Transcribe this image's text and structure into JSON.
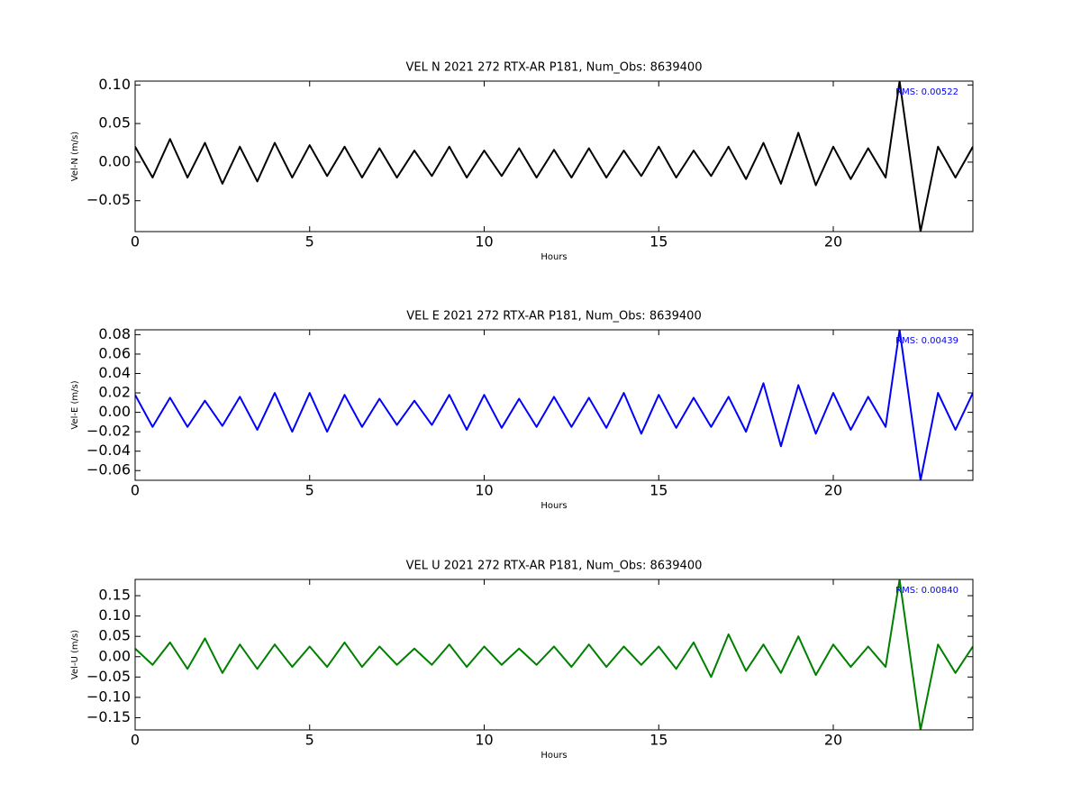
{
  "chart_data": [
    {
      "type": "line",
      "title": "VEL N 2021 272 RTX-AR  P181, Num_Obs: 8639400",
      "xlabel": "Hours",
      "ylabel": "Vel-N (m/s)",
      "annotation": "RMS:  0.00522",
      "annotation_color": "#0000ff",
      "color": "#000000",
      "x": [
        0,
        0.5,
        1,
        1.5,
        2,
        2.5,
        3,
        3.5,
        4,
        4.5,
        5,
        5.5,
        6,
        6.5,
        7,
        7.5,
        8,
        8.5,
        9,
        9.5,
        10,
        10.5,
        11,
        11.5,
        12,
        12.5,
        13,
        13.5,
        14,
        14.5,
        15,
        15.5,
        16,
        16.5,
        17,
        17.5,
        18,
        18.5,
        19,
        19.5,
        20,
        20.5,
        21,
        21.5,
        21.9,
        22.5,
        23,
        23.5,
        24
      ],
      "values": [
        0.02,
        -0.02,
        0.03,
        -0.02,
        0.025,
        -0.028,
        0.02,
        -0.025,
        0.025,
        -0.02,
        0.022,
        -0.018,
        0.02,
        -0.02,
        0.018,
        -0.02,
        0.015,
        -0.018,
        0.02,
        -0.02,
        0.015,
        -0.018,
        0.018,
        -0.02,
        0.016,
        -0.02,
        0.018,
        -0.02,
        0.015,
        -0.018,
        0.02,
        -0.02,
        0.015,
        -0.018,
        0.02,
        -0.022,
        0.025,
        -0.028,
        0.038,
        -0.03,
        0.02,
        -0.022,
        0.018,
        -0.02,
        0.105,
        -0.09,
        0.02,
        -0.02,
        0.02
      ],
      "xlim": [
        0,
        24
      ],
      "xticks": [
        0,
        5,
        10,
        15,
        20
      ],
      "ylim": [
        -0.09,
        0.105
      ],
      "yticks": [
        {
          "value": -0.05,
          "label": "−0.05"
        },
        {
          "value": 0,
          "label": "0.00"
        },
        {
          "value": 0.05,
          "label": "0.05"
        },
        {
          "value": 0.1,
          "label": "0.10"
        }
      ]
    },
    {
      "type": "line",
      "title": "VEL E 2021 272 RTX-AR  P181, Num_Obs: 8639400",
      "xlabel": "Hours",
      "ylabel": "Vel-E (m/s)",
      "annotation": "RMS:  0.00439",
      "annotation_color": "#0000ff",
      "color": "#0000ff",
      "x": [
        0,
        0.5,
        1,
        1.5,
        2,
        2.5,
        3,
        3.5,
        4,
        4.5,
        5,
        5.5,
        6,
        6.5,
        7,
        7.5,
        8,
        8.5,
        9,
        9.5,
        10,
        10.5,
        11,
        11.5,
        12,
        12.5,
        13,
        13.5,
        14,
        14.5,
        15,
        15.5,
        16,
        16.5,
        17,
        17.5,
        18,
        18.5,
        19,
        19.5,
        20,
        20.5,
        21,
        21.5,
        21.9,
        22.5,
        23,
        23.5,
        24
      ],
      "values": [
        0.018,
        -0.015,
        0.015,
        -0.015,
        0.012,
        -0.014,
        0.016,
        -0.018,
        0.02,
        -0.02,
        0.02,
        -0.02,
        0.018,
        -0.015,
        0.014,
        -0.013,
        0.012,
        -0.013,
        0.018,
        -0.018,
        0.018,
        -0.016,
        0.014,
        -0.015,
        0.016,
        -0.015,
        0.015,
        -0.016,
        0.02,
        -0.022,
        0.018,
        -0.016,
        0.015,
        -0.015,
        0.016,
        -0.02,
        0.03,
        -0.035,
        0.028,
        -0.022,
        0.02,
        -0.018,
        0.016,
        -0.015,
        0.085,
        -0.07,
        0.02,
        -0.018,
        0.02
      ],
      "xlim": [
        0,
        24
      ],
      "xticks": [
        0,
        5,
        10,
        15,
        20
      ],
      "ylim": [
        -0.07,
        0.085
      ],
      "yticks": [
        {
          "value": -0.06,
          "label": "−0.06"
        },
        {
          "value": -0.04,
          "label": "−0.04"
        },
        {
          "value": -0.02,
          "label": "−0.02"
        },
        {
          "value": 0,
          "label": "0.00"
        },
        {
          "value": 0.02,
          "label": "0.02"
        },
        {
          "value": 0.04,
          "label": "0.04"
        },
        {
          "value": 0.06,
          "label": "0.06"
        },
        {
          "value": 0.08,
          "label": "0.08"
        }
      ]
    },
    {
      "type": "line",
      "title": "VEL U 2021 272 RTX-AR  P181, Num_Obs: 8639400",
      "xlabel": "Hours",
      "ylabel": "Vel-U (m/s)",
      "annotation": "RMS:  0.00840",
      "annotation_color": "#0000ff",
      "color": "#008000",
      "x": [
        0,
        0.5,
        1,
        1.5,
        2,
        2.5,
        3,
        3.5,
        4,
        4.5,
        5,
        5.5,
        6,
        6.5,
        7,
        7.5,
        8,
        8.5,
        9,
        9.5,
        10,
        10.5,
        11,
        11.5,
        12,
        12.5,
        13,
        13.5,
        14,
        14.5,
        15,
        15.5,
        16,
        16.5,
        17,
        17.5,
        18,
        18.5,
        19,
        19.5,
        20,
        20.5,
        21,
        21.5,
        21.9,
        22.5,
        23,
        23.5,
        24
      ],
      "values": [
        0.02,
        -0.02,
        0.035,
        -0.03,
        0.045,
        -0.04,
        0.03,
        -0.03,
        0.03,
        -0.025,
        0.025,
        -0.025,
        0.035,
        -0.025,
        0.025,
        -0.02,
        0.02,
        -0.02,
        0.03,
        -0.025,
        0.025,
        -0.02,
        0.02,
        -0.02,
        0.025,
        -0.025,
        0.03,
        -0.025,
        0.025,
        -0.02,
        0.025,
        -0.03,
        0.035,
        -0.05,
        0.055,
        -0.035,
        0.03,
        -0.04,
        0.05,
        -0.045,
        0.03,
        -0.025,
        0.025,
        -0.025,
        0.19,
        -0.18,
        0.03,
        -0.04,
        0.025
      ],
      "xlim": [
        0,
        24
      ],
      "xticks": [
        0,
        5,
        10,
        15,
        20
      ],
      "ylim": [
        -0.18,
        0.19
      ],
      "yticks": [
        {
          "value": -0.15,
          "label": "−0.15"
        },
        {
          "value": -0.1,
          "label": "−0.10"
        },
        {
          "value": -0.05,
          "label": "−0.05"
        },
        {
          "value": 0,
          "label": "0.00"
        },
        {
          "value": 0.05,
          "label": "0.05"
        },
        {
          "value": 0.1,
          "label": "0.10"
        },
        {
          "value": 0.15,
          "label": "0.15"
        }
      ]
    }
  ]
}
